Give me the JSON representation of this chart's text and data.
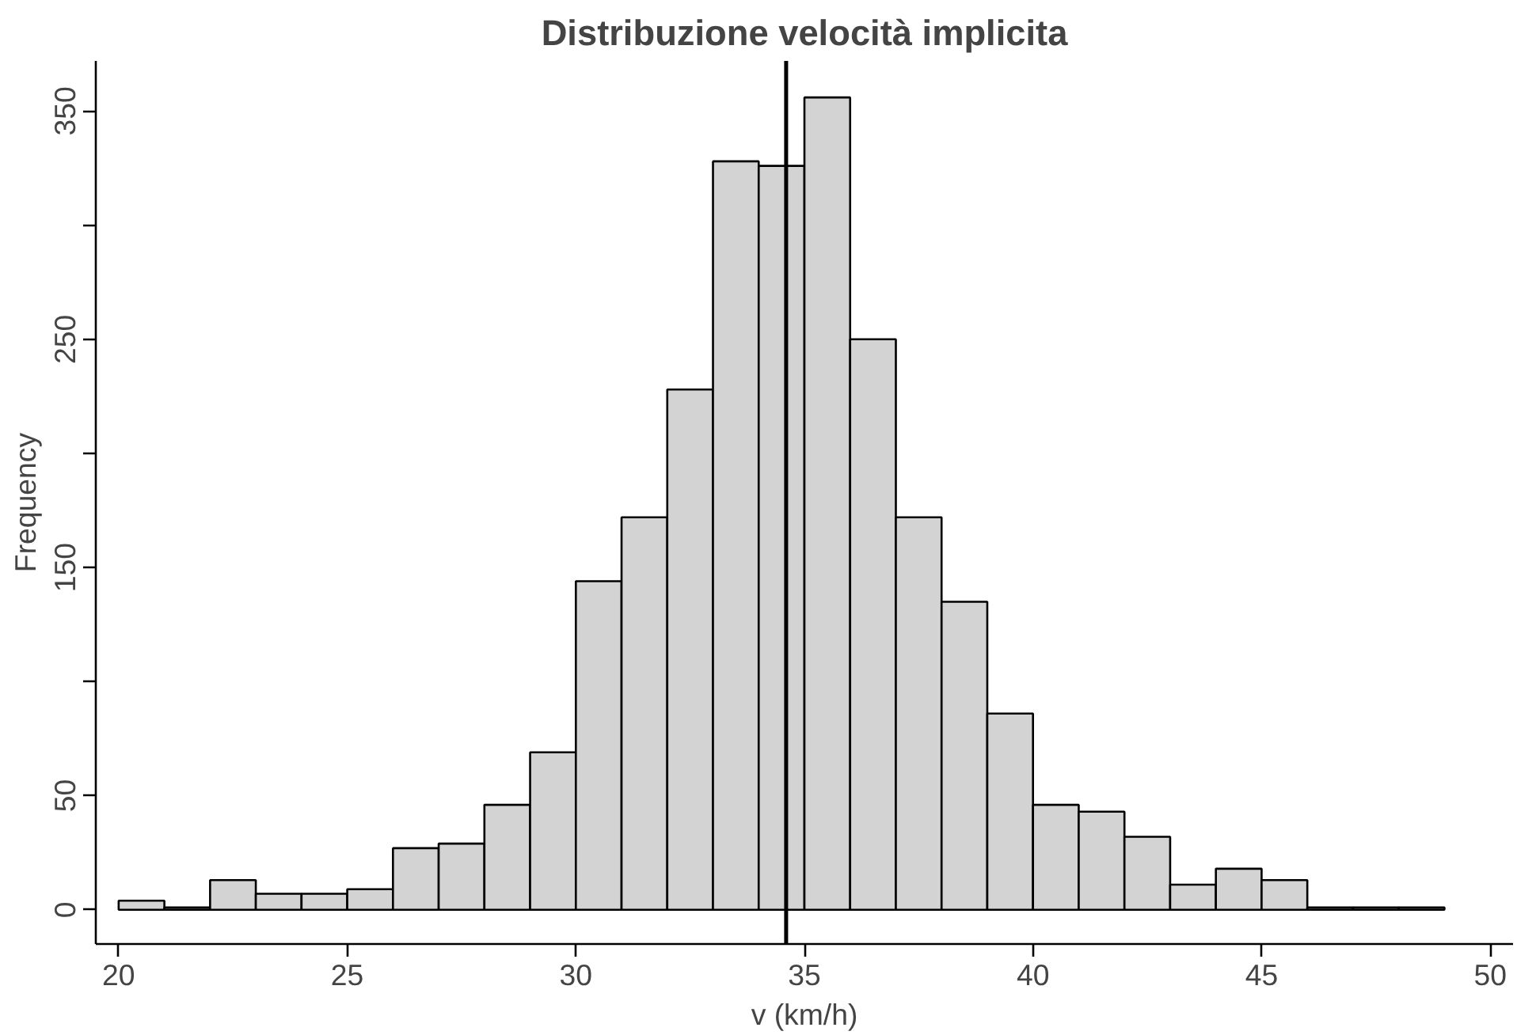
{
  "chart_data": {
    "type": "histogram",
    "title": "Distribuzione velocità implicita",
    "xlabel": "v (km/h)",
    "ylabel": "Frequency",
    "bins": [
      20,
      21,
      22,
      23,
      24,
      25,
      26,
      27,
      28,
      29,
      30,
      31,
      32,
      33,
      34,
      35,
      36,
      37,
      38,
      39,
      40,
      41,
      42,
      43,
      44,
      45,
      46,
      47,
      48,
      49
    ],
    "values": [
      4,
      1,
      13,
      7,
      7,
      9,
      27,
      29,
      46,
      69,
      144,
      172,
      228,
      328,
      326,
      356,
      250,
      172,
      135,
      86,
      46,
      43,
      32,
      11,
      18,
      13,
      1,
      1,
      1
    ],
    "color": "#d3d3d3",
    "xlim": [
      19.5,
      50.5
    ],
    "ylim": [
      -15,
      372
    ],
    "xticks": [
      20,
      25,
      30,
      35,
      40,
      45,
      50
    ],
    "yticks": [
      0,
      50,
      {
        "value": 100,
        "label": null
      },
      150,
      {
        "value": 200,
        "label": null
      },
      250,
      {
        "value": 300,
        "label": null
      },
      350
    ],
    "ref_lines": [
      {
        "axis": "x",
        "value": 34.6,
        "label": null,
        "color": "#000000",
        "line_style": "solid"
      }
    ],
    "grid": false
  }
}
